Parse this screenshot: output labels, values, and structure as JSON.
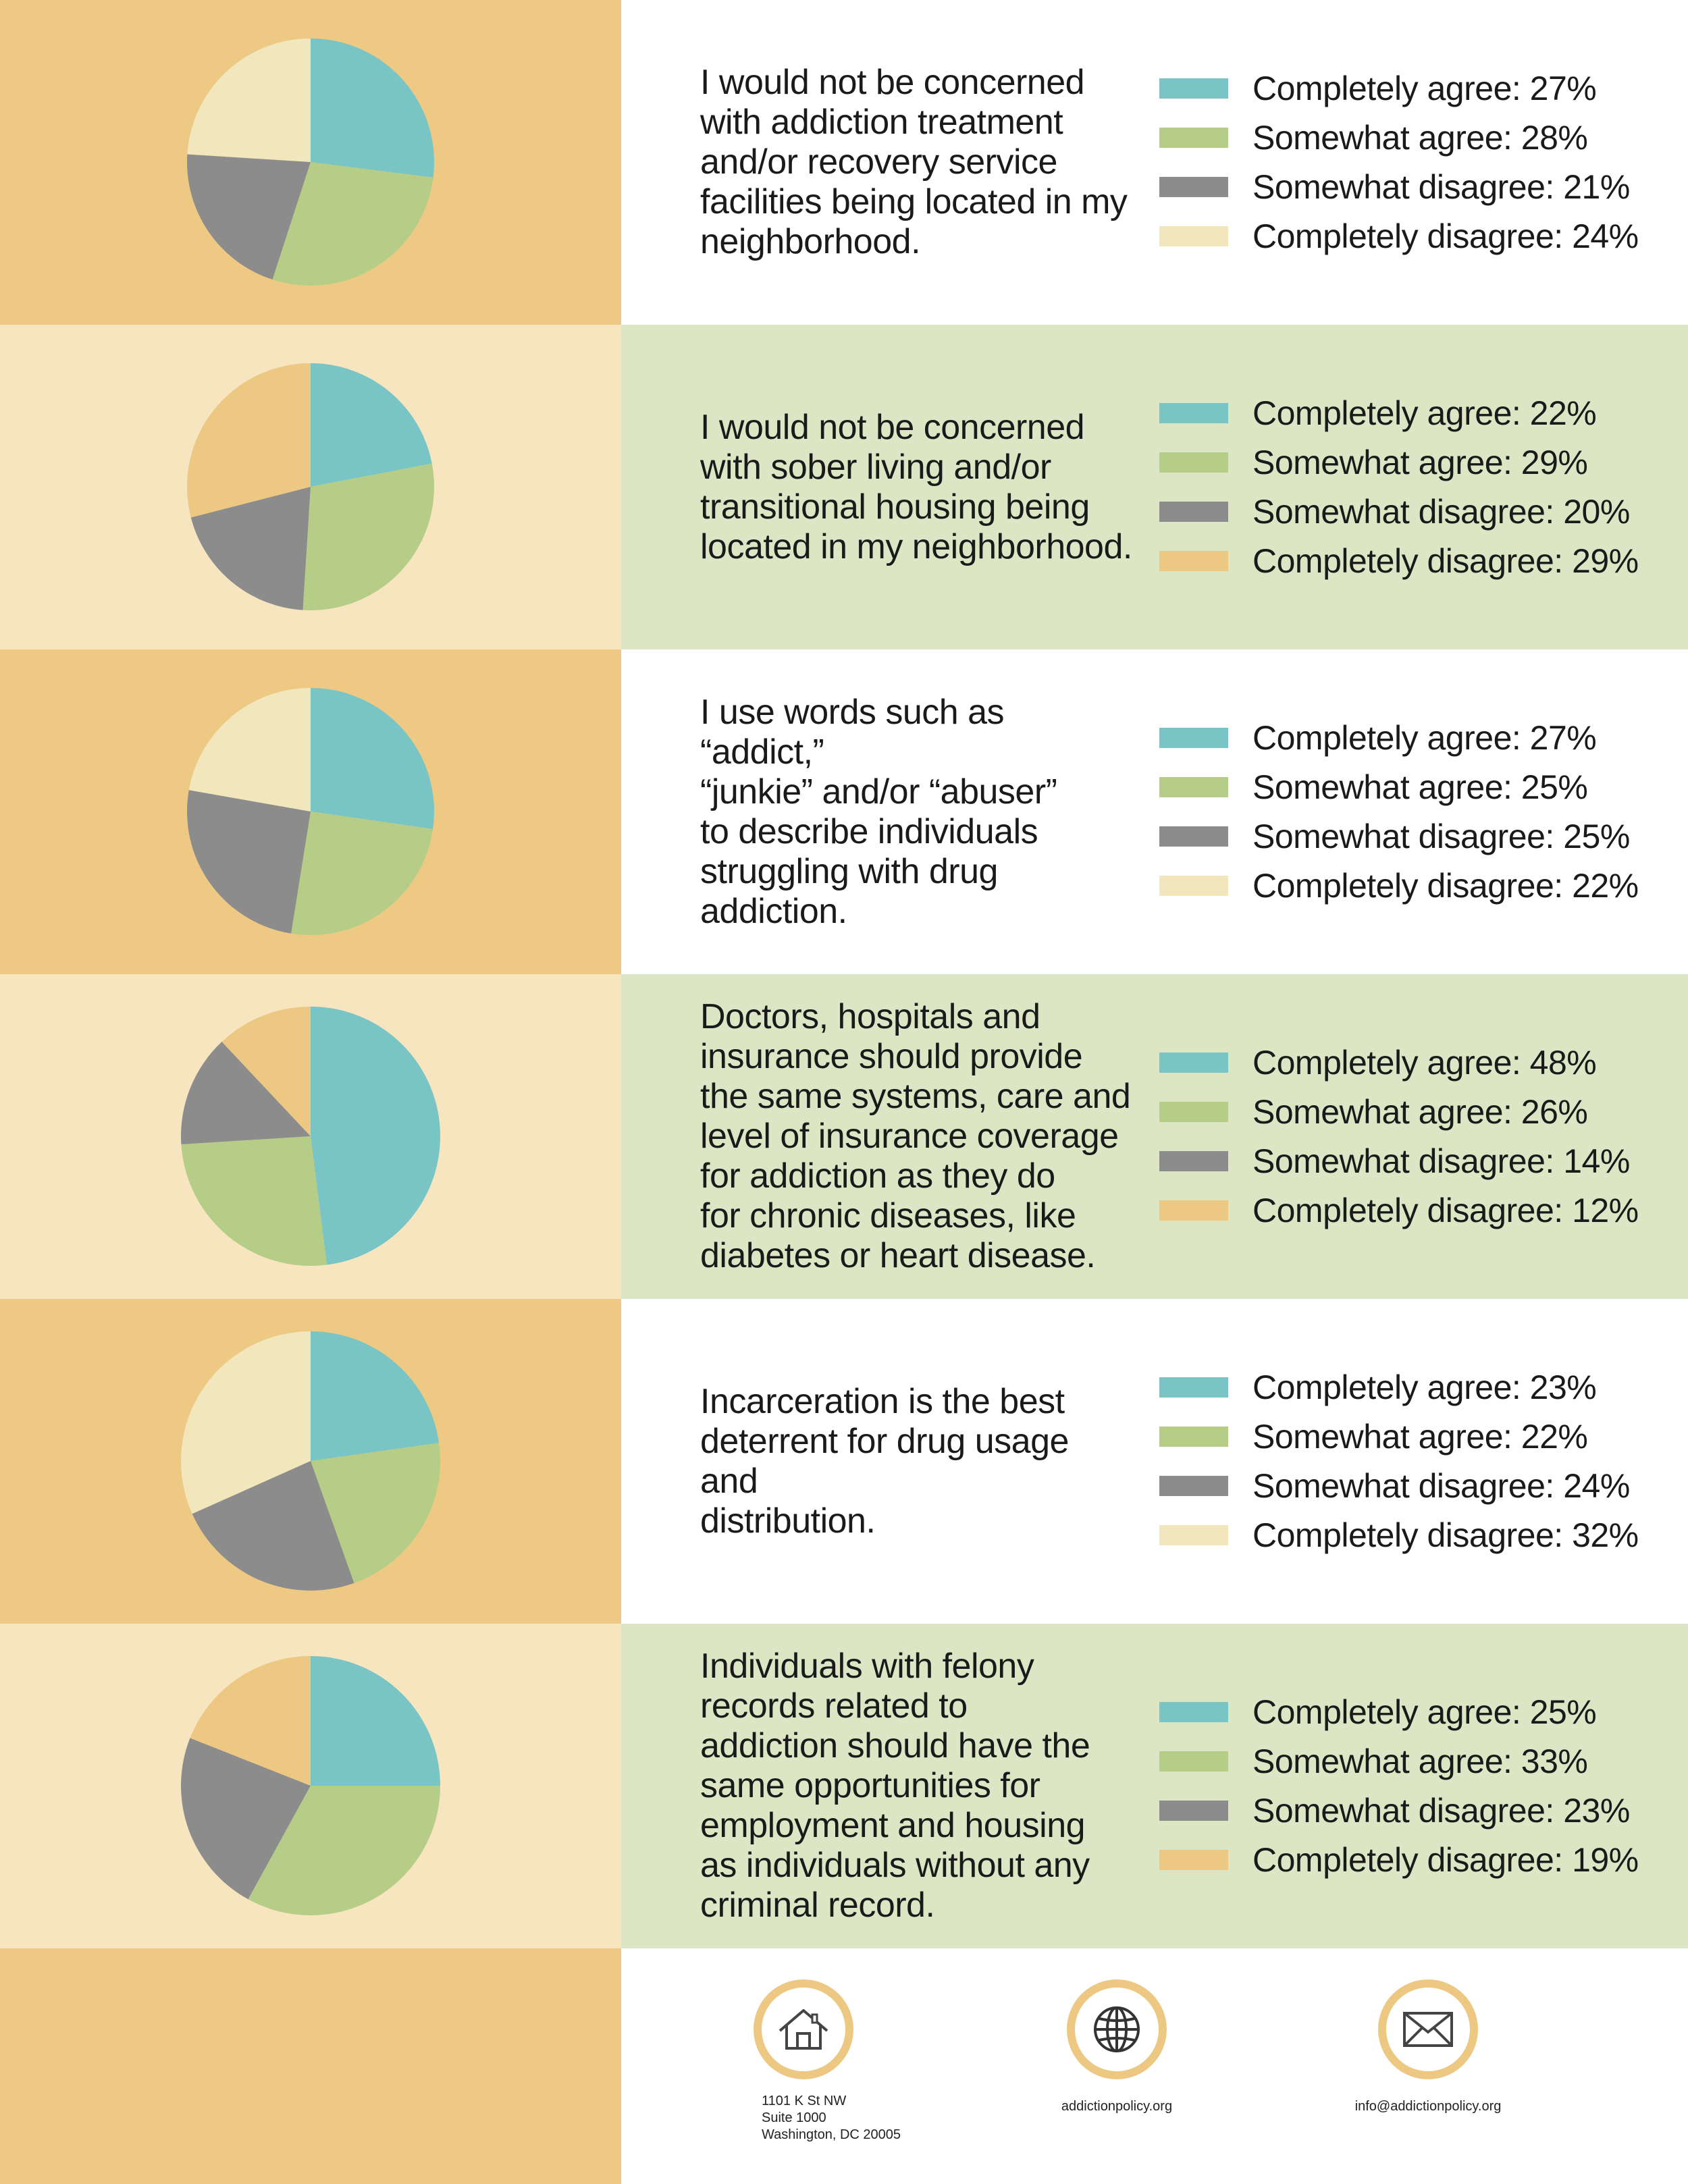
{
  "colors": {
    "teal": "#79c4c5",
    "green": "#b6cd88",
    "gray": "#8c8c8c",
    "cream": "#f2e6bd",
    "gold": "#edc883",
    "left_dark": "#edc983",
    "left_light": "#f7e5bf",
    "right_green": "#dce6c4",
    "right_white": "#ffffff"
  },
  "chart_data": [
    {
      "type": "pie",
      "question": [
        "I would not be concerned",
        "with addiction treatment",
        "and/or recovery service",
        "facilities being located in my",
        "neighborhood."
      ],
      "categories": [
        "Completely agree",
        "Somewhat agree",
        "Somewhat disagree",
        "Completely disagree"
      ],
      "values": [
        27,
        28,
        21,
        24
      ],
      "legend": [
        "Completely agree: 27%",
        "Somewhat agree: 28%",
        "Somewhat disagree: 21%",
        "Completely disagree: 24%"
      ],
      "colors": [
        "#79c4c5",
        "#b6cd88",
        "#8c8c8c",
        "#f2e6bd"
      ]
    },
    {
      "type": "pie",
      "question": [
        "I would not be concerned",
        "with sober living and/or",
        "transitional housing being",
        "located in my neighborhood."
      ],
      "categories": [
        "Completely agree",
        "Somewhat agree",
        "Somewhat disagree",
        "Completely disagree"
      ],
      "values": [
        22,
        29,
        20,
        29
      ],
      "legend": [
        "Completely agree: 22%",
        "Somewhat agree: 29%",
        "Somewhat disagree: 20%",
        "Completely disagree: 29%"
      ],
      "colors": [
        "#79c4c5",
        "#b6cd88",
        "#8c8c8c",
        "#edc883"
      ]
    },
    {
      "type": "pie",
      "question": [
        "I use words such as “addict,”",
        "“junkie” and/or “abuser”",
        "to describe individuals",
        "struggling with drug",
        "addiction."
      ],
      "categories": [
        "Completely agree",
        "Somewhat agree",
        "Somewhat disagree",
        "Completely disagree"
      ],
      "values": [
        27,
        25,
        25,
        22
      ],
      "legend": [
        "Completely agree: 27%",
        "Somewhat agree: 25%",
        "Somewhat disagree: 25%",
        "Completely disagree: 22%"
      ],
      "colors": [
        "#79c4c5",
        "#b6cd88",
        "#8c8c8c",
        "#f2e6bd"
      ]
    },
    {
      "type": "pie",
      "question": [
        "Doctors, hospitals and",
        "insurance should provide",
        "the same systems, care and",
        "level of insurance coverage",
        "for addiction as they do",
        "for chronic diseases, like",
        "diabetes or heart disease."
      ],
      "categories": [
        "Completely agree",
        "Somewhat agree",
        "Somewhat disagree",
        "Completely disagree"
      ],
      "values": [
        48,
        26,
        14,
        12
      ],
      "legend": [
        "Completely agree: 48%",
        "Somewhat agree: 26%",
        "Somewhat disagree: 14%",
        "Completely disagree: 12%"
      ],
      "colors": [
        "#79c4c5",
        "#b6cd88",
        "#8c8c8c",
        "#edc883"
      ]
    },
    {
      "type": "pie",
      "question": [
        "Incarceration is the best",
        "deterrent for drug usage and",
        "distribution."
      ],
      "categories": [
        "Completely agree",
        "Somewhat agree",
        "Somewhat disagree",
        "Completely disagree"
      ],
      "values": [
        23,
        22,
        24,
        32
      ],
      "legend": [
        "Completely agree: 23%",
        "Somewhat agree: 22%",
        "Somewhat disagree: 24%",
        "Completely disagree: 32%"
      ],
      "colors": [
        "#79c4c5",
        "#b6cd88",
        "#8c8c8c",
        "#f2e6bd"
      ]
    },
    {
      "type": "pie",
      "question": [
        "Individuals with felony",
        "records related to",
        "addiction should have the",
        "same opportunities for",
        "employment and housing",
        "as individuals without any",
        "criminal record."
      ],
      "categories": [
        "Completely agree",
        "Somewhat agree",
        "Somewhat disagree",
        "Completely disagree"
      ],
      "values": [
        25,
        33,
        23,
        19
      ],
      "legend": [
        "Completely agree: 25%",
        "Somewhat agree: 33%",
        "Somewhat disagree: 23%",
        "Completely disagree: 19%"
      ],
      "colors": [
        "#79c4c5",
        "#b6cd88",
        "#8c8c8c",
        "#edc883"
      ]
    }
  ],
  "footer": {
    "address": {
      "icon": "house-icon",
      "lines": [
        "1101 K St NW",
        "Suite 1000",
        "Washington, DC 20005"
      ]
    },
    "website": {
      "icon": "globe-icon",
      "text": "addictionpolicy.org"
    },
    "email": {
      "icon": "envelope-icon",
      "text": "info@addictionpolicy.org"
    }
  }
}
